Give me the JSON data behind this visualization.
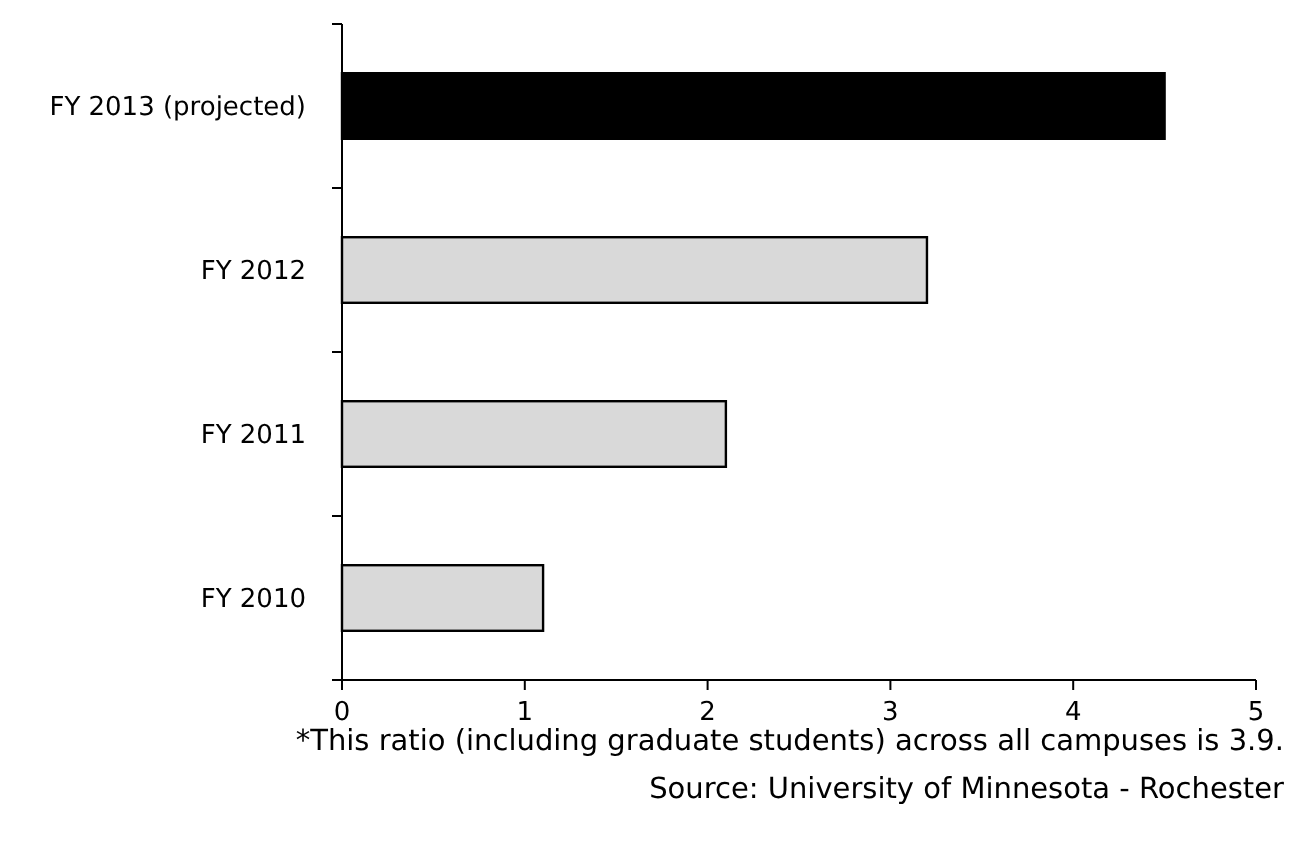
{
  "chart_data": {
    "type": "bar",
    "orientation": "horizontal",
    "categories": [
      "FY 2013 (projected)",
      "FY 2012",
      "FY 2011",
      "FY 2010"
    ],
    "values": [
      4.5,
      3.2,
      2.1,
      1.1
    ],
    "colors": [
      "#000000",
      "#d9d9d9",
      "#d9d9d9",
      "#d9d9d9"
    ],
    "xlim": [
      0,
      5
    ],
    "xticks": [
      0,
      1,
      2,
      3,
      4,
      5
    ],
    "annotations": [
      "*This ratio (including graduate students) across all campuses is 3.9.",
      "Source: University of Minnesota - Rochester"
    ]
  }
}
